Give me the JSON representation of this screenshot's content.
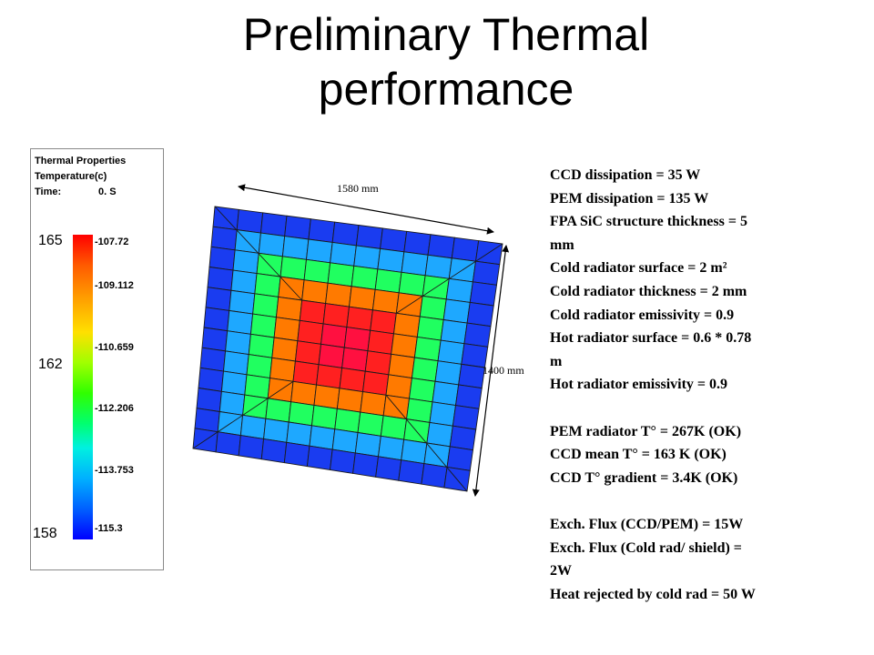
{
  "title": {
    "line1": "Preliminary Thermal",
    "line2": "performance"
  },
  "legend": {
    "header1": "Thermal Properties",
    "header2": "Temperature(c)",
    "time_label": "Time:",
    "time_value": "0. S",
    "ticks": [
      "-107.72",
      "-109.112",
      "-110.659",
      "-112.206",
      "-113.753",
      "-115.3"
    ],
    "overlay_values": [
      "165",
      "162",
      "158"
    ]
  },
  "diagram": {
    "width_label": "1580 mm",
    "height_label": "1400 mm"
  },
  "params": {
    "group1": [
      "CCD dissipation = 35 W",
      "PEM dissipation = 135 W",
      "FPA SiC structure thickness = 5",
      "mm",
      "Cold radiator surface = 2 m²",
      "Cold radiator thickness = 2 mm",
      "Cold radiator emissivity = 0.9",
      "Hot radiator surface = 0.6 * 0.78",
      "m",
      "Hot radiator emissivity = 0.9"
    ],
    "group2": [
      "PEM radiator T° = 267K (OK)",
      "CCD mean T° = 163 K (OK)",
      "CCD T° gradient = 3.4K (OK)"
    ],
    "group3": [
      "Exch. Flux (CCD/PEM) = 15W",
      "Exch. Flux (Cold rad/ shield) =",
      "2W",
      "Heat rejected by cold rad = 50 W"
    ]
  },
  "colors": {
    "ring_colors": [
      "#1a3cf0",
      "#1f6cff",
      "#1ea8ff",
      "#22e6ff",
      "#20ff60",
      "#9cff00",
      "#ffea00",
      "#ff7a00",
      "#ff2020"
    ],
    "center_color": "#ff1040"
  }
}
